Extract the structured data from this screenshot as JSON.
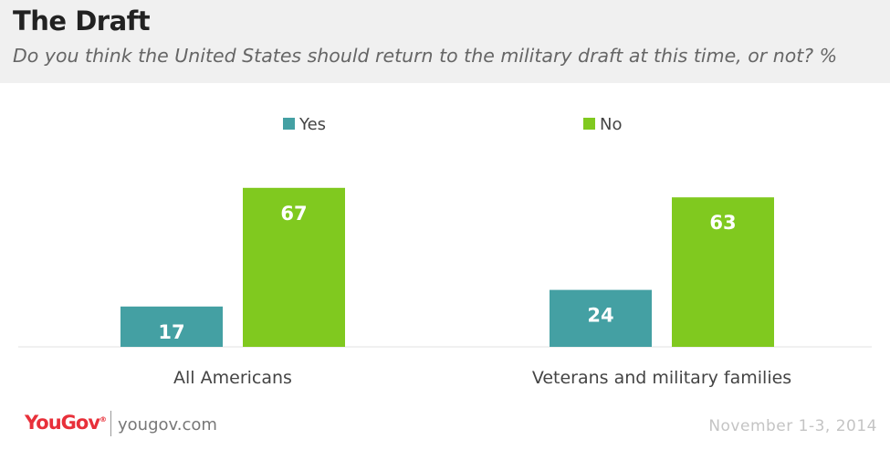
{
  "header": {
    "title": "The Draft",
    "subtitle": "Do you think the United States should return to the military draft at this time, or not? %"
  },
  "footer": {
    "brand": "YouGov",
    "url": "yougov.com",
    "date": "November 1-3, 2014"
  },
  "colors": {
    "yes": "#44a0a3",
    "no": "#80c91f",
    "header_bg": "#f0f0f0",
    "brand_red": "#e8303a"
  },
  "chart_data": {
    "type": "bar",
    "categories": [
      "All Americans",
      "Veterans and military families"
    ],
    "series": [
      {
        "name": "Yes",
        "values": [
          17,
          24
        ]
      },
      {
        "name": "No",
        "values": [
          67,
          63
        ]
      }
    ],
    "ylim": [
      0,
      70
    ],
    "legend": "top-center",
    "grid": false,
    "data_labels": true
  }
}
